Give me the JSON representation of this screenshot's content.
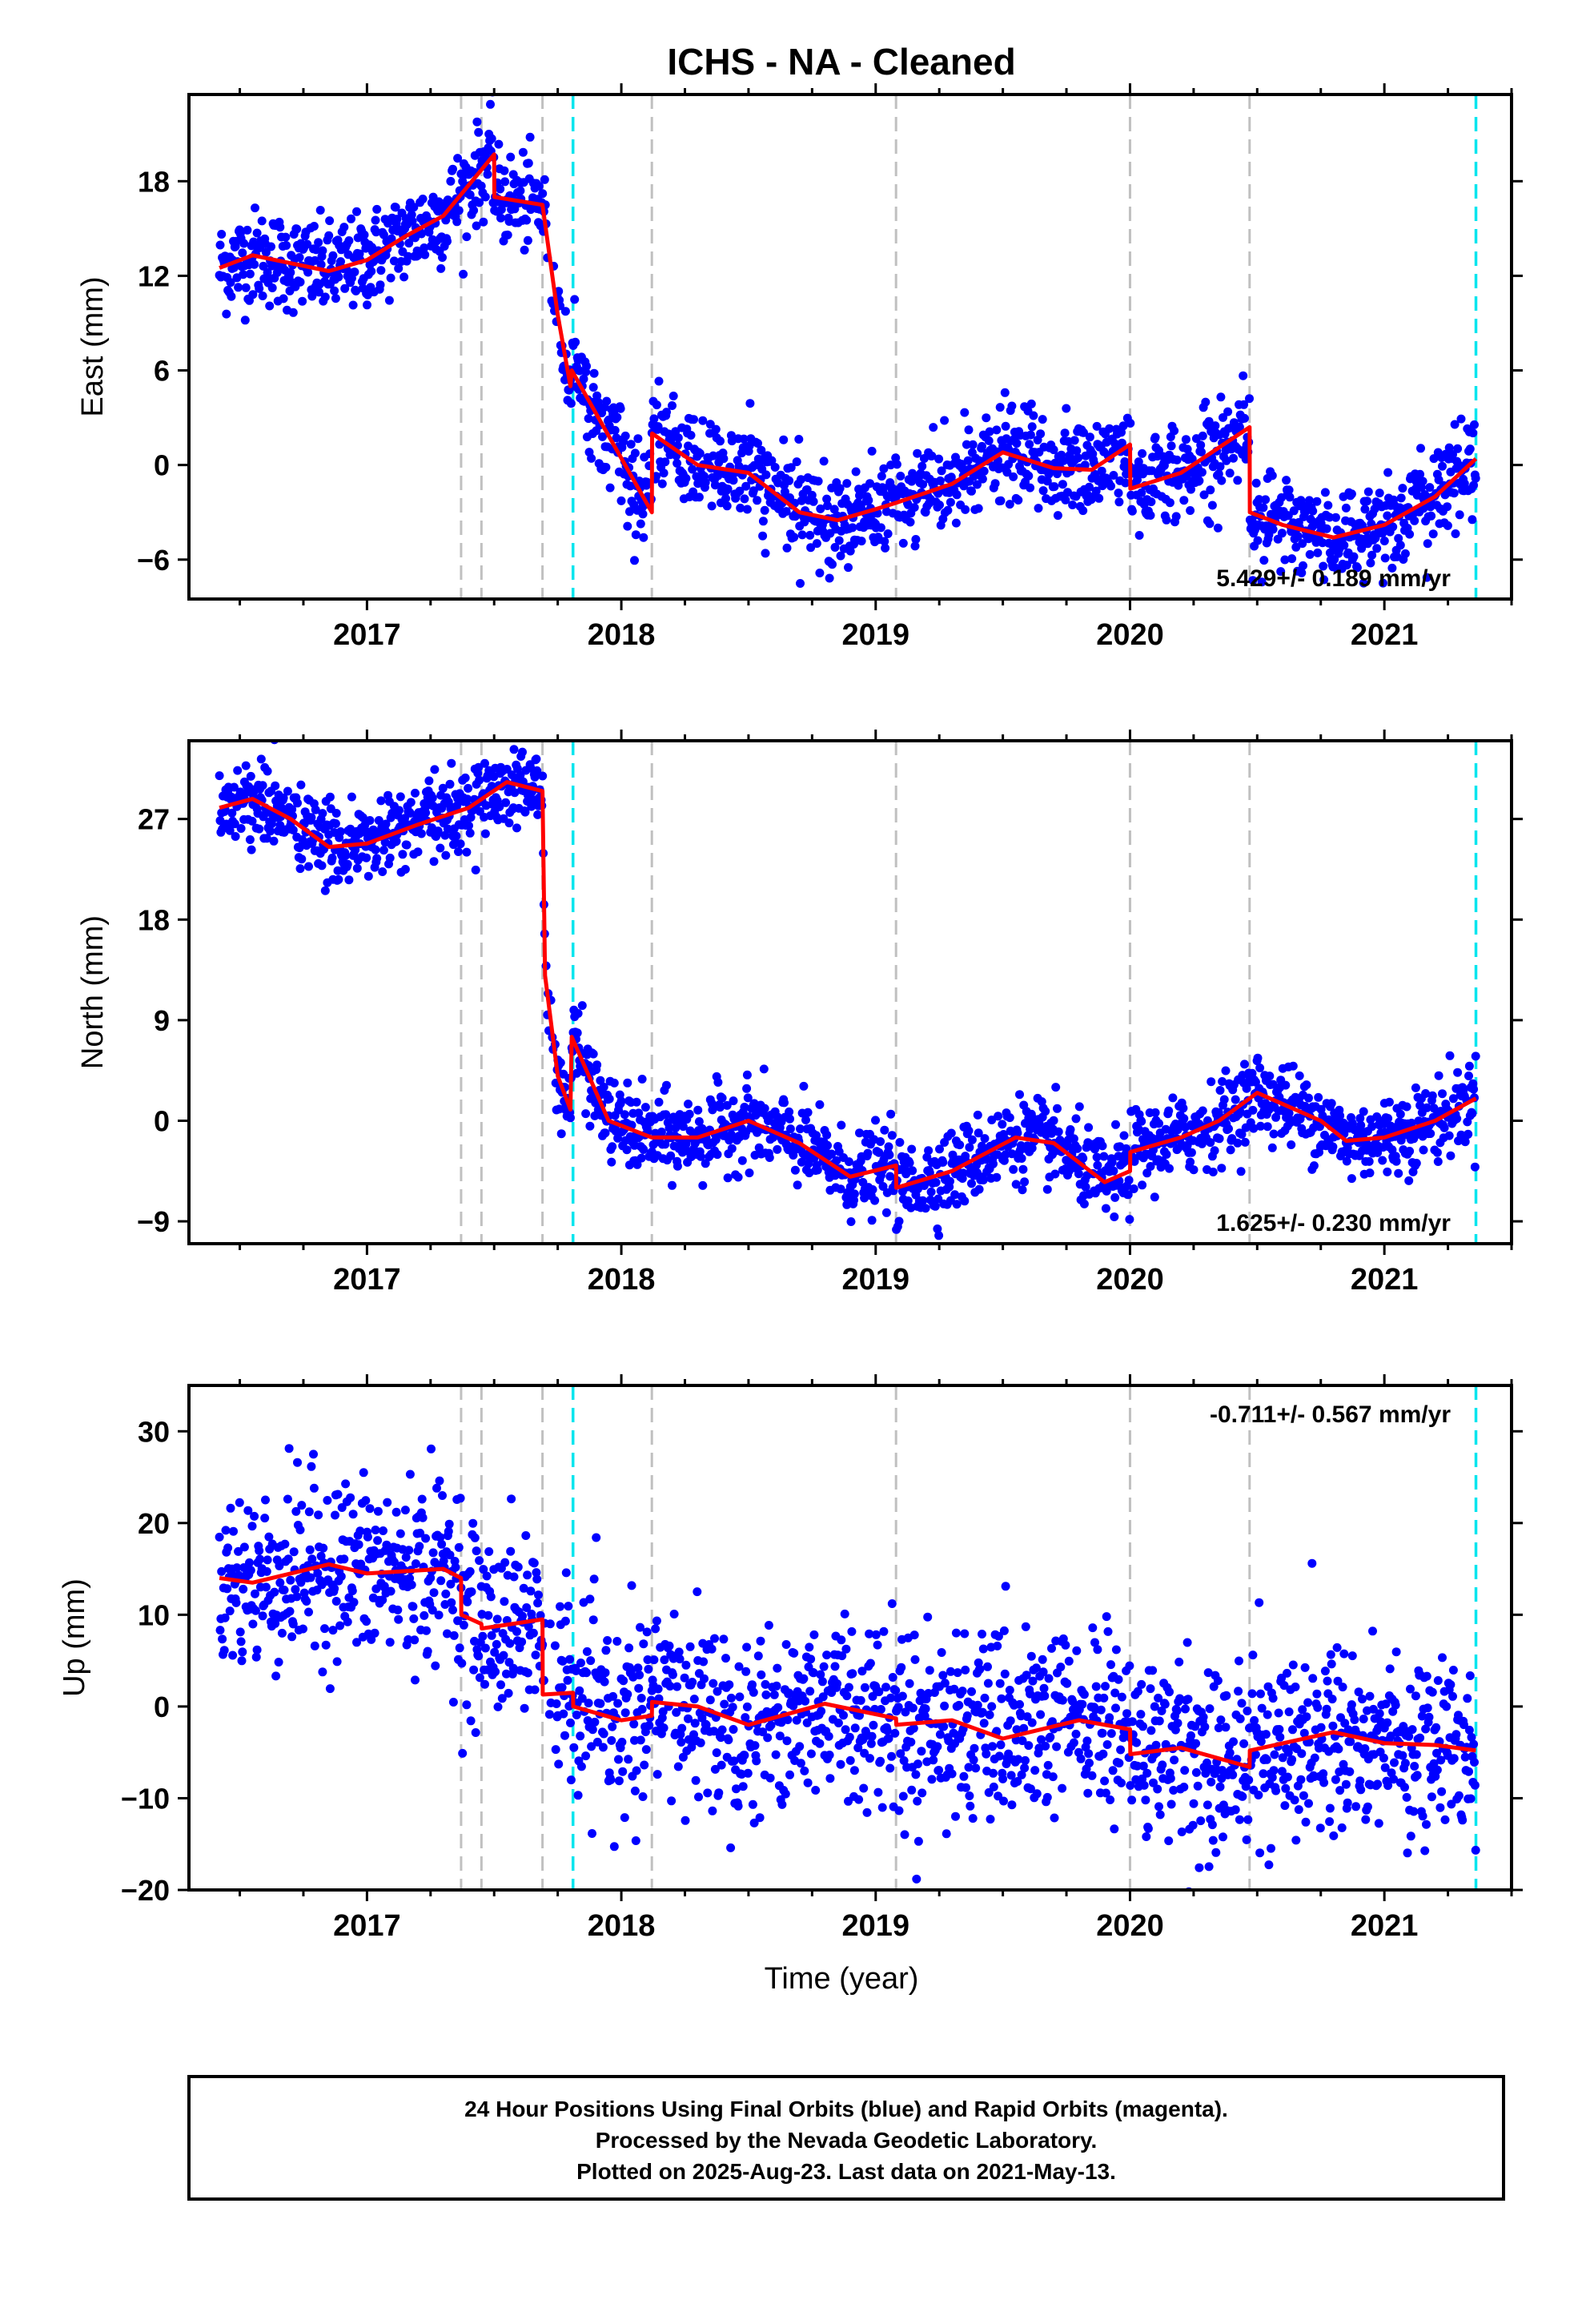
{
  "title": "ICHS  - NA - Cleaned",
  "xlabel": "Time (year)",
  "colors": {
    "points": "#0000ff",
    "model": "#ff0000",
    "equipment_line": "#c0c0c0",
    "marker_line": "#00e5ee",
    "frame": "#000000"
  },
  "footer": {
    "line1": "24 Hour Positions Using Final Orbits (blue) and Rapid Orbits (magenta).",
    "line2": "Processed by the Nevada Geodetic Laboratory.",
    "line3": "Plotted on 2025-Aug-23. Last data on 2021-May-13."
  },
  "chart_data": [
    {
      "type": "scatter",
      "name": "east",
      "ylabel": "East (mm)",
      "rate": "5.429+/- 0.189 mm/yr",
      "rate_position": "bottom-right",
      "xlim": [
        2016.3,
        2021.5
      ],
      "ylim": [
        -8.5,
        23.5
      ],
      "xticks": [
        2017,
        2018,
        2019,
        2020,
        2021
      ],
      "yticks": [
        18,
        12,
        6,
        0,
        -6
      ],
      "ytick_labels": [
        "18",
        "12",
        "6",
        "0",
        "−6"
      ],
      "grey_dashed_x": [
        2017.37,
        2017.45,
        2017.69,
        2018.12,
        2019.08,
        2020.0,
        2020.47
      ],
      "cyan_dashed_x": [
        2017.81,
        2021.36
      ],
      "model_x": [
        2016.42,
        2016.55,
        2016.7,
        2016.85,
        2017.0,
        2017.15,
        2017.3,
        2017.5,
        2017.501,
        2017.69,
        2017.75,
        2017.8,
        2017.805,
        2018.12,
        2018.121,
        2018.3,
        2018.5,
        2018.7,
        2018.85,
        2019.0,
        2019.08,
        2019.3,
        2019.5,
        2019.7,
        2019.85,
        2020.0,
        2020.001,
        2020.2,
        2020.47,
        2020.471,
        2020.6,
        2020.8,
        2021.0,
        2021.2,
        2021.36
      ],
      "model_y": [
        12.5,
        13.3,
        12.8,
        12.3,
        13.0,
        14.5,
        15.8,
        19.7,
        17.0,
        16.5,
        9.5,
        5.0,
        6.0,
        -3.0,
        2.0,
        0.0,
        -0.5,
        -3.0,
        -3.5,
        -2.8,
        -2.4,
        -1.2,
        0.8,
        -0.2,
        -0.3,
        1.3,
        -1.5,
        -0.5,
        2.4,
        -3.0,
        -3.8,
        -4.6,
        -3.8,
        -2.0,
        0.4
      ],
      "points_summary": "about 1,700 daily East position estimates, scattered ±2 mm around the model"
    },
    {
      "type": "scatter",
      "name": "north",
      "ylabel": "North (mm)",
      "rate": "1.625+/- 0.230 mm/yr",
      "rate_position": "bottom-right",
      "xlim": [
        2016.3,
        2021.5
      ],
      "ylim": [
        -11,
        34
      ],
      "xticks": [
        2017,
        2018,
        2019,
        2020,
        2021
      ],
      "yticks": [
        27,
        18,
        9,
        0,
        -9
      ],
      "ytick_labels": [
        "27",
        "18",
        "9",
        "0",
        "−9"
      ],
      "grey_dashed_x": [
        2017.37,
        2017.45,
        2017.69,
        2018.12,
        2019.08,
        2020.0,
        2020.47
      ],
      "cyan_dashed_x": [
        2017.81,
        2021.36
      ],
      "model_x": [
        2016.42,
        2016.55,
        2016.7,
        2016.85,
        2017.0,
        2017.2,
        2017.4,
        2017.55,
        2017.69,
        2017.7,
        2017.75,
        2017.8,
        2017.805,
        2017.95,
        2018.12,
        2018.3,
        2018.5,
        2018.7,
        2018.9,
        2019.08,
        2019.081,
        2019.3,
        2019.55,
        2019.7,
        2019.9,
        2020.0,
        2020.001,
        2020.2,
        2020.35,
        2020.5,
        2020.75,
        2020.85,
        2021.0,
        2021.2,
        2021.36
      ],
      "model_y": [
        28.0,
        28.8,
        27.0,
        24.5,
        24.8,
        26.5,
        28.0,
        30.3,
        29.5,
        13.0,
        4.0,
        1.0,
        7.5,
        0.0,
        -1.5,
        -1.5,
        0.0,
        -2.0,
        -5.0,
        -4.0,
        -6.0,
        -4.5,
        -1.5,
        -2.0,
        -5.5,
        -4.5,
        -2.8,
        -1.5,
        0.0,
        2.5,
        0.0,
        -1.8,
        -1.5,
        0.0,
        2.0
      ],
      "points_summary": "about 1,700 daily North position estimates, scattered ±2.5 mm around the model"
    },
    {
      "type": "scatter",
      "name": "up",
      "ylabel": "Up (mm)",
      "rate": "-0.711+/- 0.567 mm/yr",
      "rate_position": "top-right",
      "xlim": [
        2016.3,
        2021.5
      ],
      "ylim": [
        -20,
        35
      ],
      "xticks": [
        2017,
        2018,
        2019,
        2020,
        2021
      ],
      "yticks": [
        30,
        20,
        10,
        0,
        -10,
        -20
      ],
      "ytick_labels": [
        "30",
        "20",
        "10",
        "0",
        "−10",
        "−20"
      ],
      "grey_dashed_x": [
        2017.37,
        2017.45,
        2017.69,
        2018.12,
        2019.08,
        2020.0,
        2020.47
      ],
      "cyan_dashed_x": [
        2017.81,
        2021.36
      ],
      "model_x": [
        2016.42,
        2016.55,
        2016.85,
        2017.0,
        2017.3,
        2017.37,
        2017.371,
        2017.45,
        2017.451,
        2017.69,
        2017.691,
        2017.81,
        2017.811,
        2018.0,
        2018.12,
        2018.121,
        2018.3,
        2018.5,
        2018.8,
        2019.08,
        2019.081,
        2019.3,
        2019.5,
        2019.8,
        2020.0,
        2020.001,
        2020.2,
        2020.47,
        2020.471,
        2020.8,
        2021.0,
        2021.2,
        2021.36
      ],
      "model_y": [
        14.0,
        13.5,
        15.5,
        14.5,
        15.0,
        14.0,
        10.0,
        9.0,
        8.5,
        9.5,
        1.3,
        1.5,
        0.0,
        -1.5,
        -1.0,
        0.5,
        0.0,
        -2.0,
        0.3,
        -1.3,
        -2.0,
        -1.5,
        -3.5,
        -1.5,
        -2.5,
        -5.2,
        -4.5,
        -6.6,
        -4.8,
        -2.8,
        -4.0,
        -4.2,
        -4.8
      ],
      "points_summary": "about 1,700 daily Up position estimates, scattered ±6 mm around the model"
    }
  ]
}
